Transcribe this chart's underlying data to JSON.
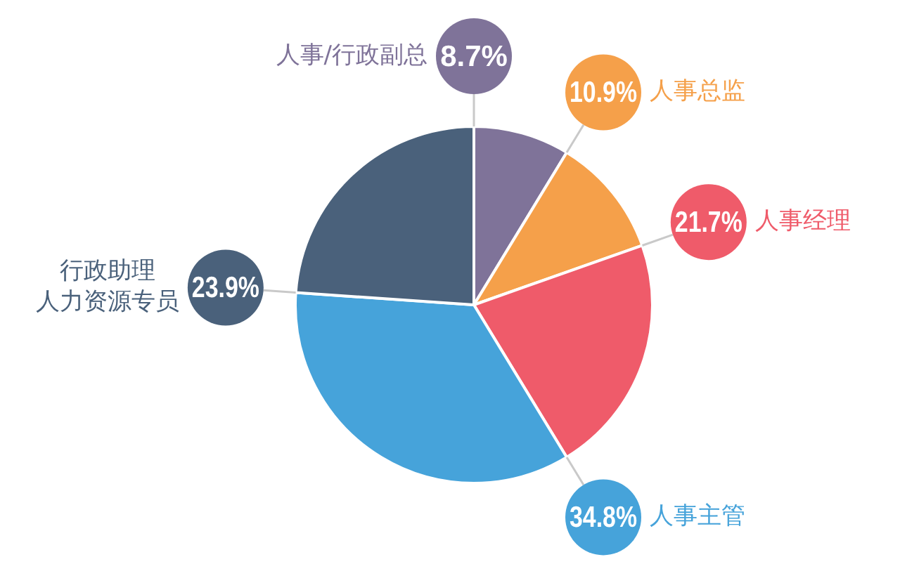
{
  "chart_data": {
    "type": "pie",
    "categories": [
      "人事/行政副总",
      "人事总监",
      "人事经理",
      "人事主管",
      "行政助理人力资源专员"
    ],
    "values": [
      8.7,
      10.9,
      21.7,
      34.8,
      23.9
    ],
    "colors": [
      "#7f7399",
      "#f5a04a",
      "#ef5b6a",
      "#46a3da",
      "#4a617b"
    ],
    "value_labels": [
      "8.7%",
      "10.9%",
      "21.7%",
      "34.8%",
      "23.9%"
    ],
    "legend": false
  }
}
